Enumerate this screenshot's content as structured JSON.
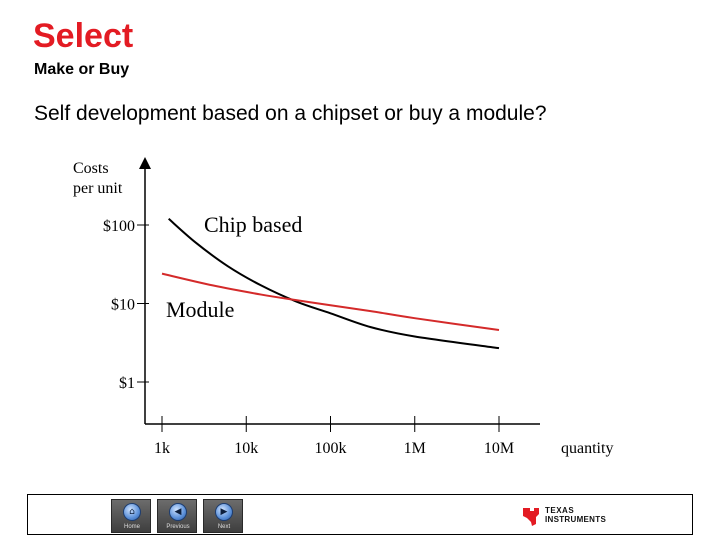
{
  "header": {
    "title": "Select",
    "subtitle": "Make or Buy",
    "question": "Self development based on a chipset or buy a module?"
  },
  "colors": {
    "title": "#e31b23",
    "chip_line": "#000000",
    "module_line": "#d42a2a"
  },
  "chart_data": {
    "type": "line",
    "ylabel": "Costs\nper unit",
    "xlabel": "quantity",
    "y_scale": "log",
    "x_scale": "log",
    "y_ticks": [
      {
        "value": 100,
        "label": "$100"
      },
      {
        "value": 10,
        "label": "$10"
      },
      {
        "value": 1,
        "label": "$1"
      }
    ],
    "x_ticks": [
      {
        "value": 1000,
        "label": "1k"
      },
      {
        "value": 10000,
        "label": "10k"
      },
      {
        "value": 100000,
        "label": "100k"
      },
      {
        "value": 1000000,
        "label": "1M"
      },
      {
        "value": 10000000,
        "label": "10M"
      }
    ],
    "series": [
      {
        "name": "Chip based",
        "x": [
          1200,
          2500,
          6000,
          15000,
          40000,
          100000,
          300000,
          1000000,
          10000000
        ],
        "y": [
          120,
          60,
          30,
          17,
          10.5,
          7.5,
          5.0,
          3.8,
          2.7
        ]
      },
      {
        "name": "Module",
        "x": [
          1000,
          4000,
          15000,
          40000,
          100000,
          300000,
          1000000,
          10000000
        ],
        "y": [
          24,
          17,
          13,
          11,
          9.5,
          8.0,
          6.5,
          4.6
        ]
      }
    ]
  },
  "footer": {
    "nav": [
      {
        "label": "Home"
      },
      {
        "label": "Previous"
      },
      {
        "label": "Next"
      }
    ],
    "logo_line1": "TEXAS",
    "logo_line2": "INSTRUMENTS"
  }
}
